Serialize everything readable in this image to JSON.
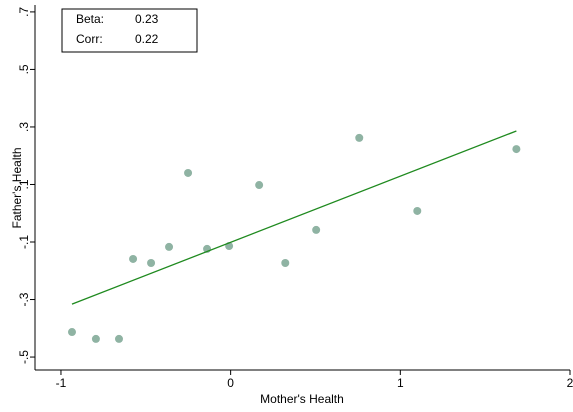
{
  "chart_data": {
    "type": "scatter",
    "x_label": "Mother's Health",
    "y_label": "Father's Health",
    "x": [
      -0.935,
      -0.794,
      -0.658,
      -0.575,
      -0.469,
      -0.363,
      -0.251,
      -0.139,
      -0.009,
      0.168,
      0.322,
      0.504,
      0.758,
      1.1,
      1.684
    ],
    "y": [
      -0.413,
      -0.437,
      -0.437,
      -0.159,
      -0.173,
      -0.117,
      0.14,
      -0.124,
      -0.114,
      0.098,
      -0.173,
      -0.058,
      0.262,
      0.008,
      0.223
    ],
    "color": "#8fb3a3",
    "fit_line": {
      "x": [
        -0.935,
        1.684
      ],
      "y": [
        -0.316,
        0.286
      ],
      "color": "#1f8a1f"
    },
    "xlim": [
      -1.153,
      2
    ],
    "ylim": [
      -0.545,
      0.724
    ],
    "xticks": [
      -1,
      0,
      1,
      2
    ],
    "yticks": [
      {
        "value": -0.5,
        "label": "-.5"
      },
      {
        "value": -0.3,
        "label": "-.3"
      },
      {
        "value": -0.1,
        "label": "-.1"
      },
      {
        "value": 0.1,
        "label": ".1"
      },
      {
        "value": 0.3,
        "label": ".3"
      },
      {
        "value": 0.5,
        "label": ".5"
      },
      {
        "value": 0.7,
        "label": ".7"
      }
    ],
    "stats": [
      {
        "label": "Beta:",
        "value": 0.23
      },
      {
        "label": "Corr:",
        "value": 0.22
      }
    ]
  }
}
